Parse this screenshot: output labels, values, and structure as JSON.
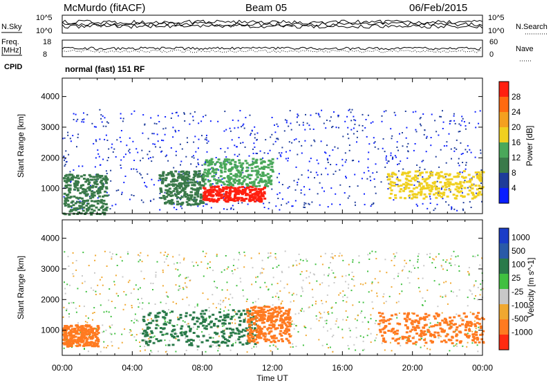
{
  "header": {
    "station": "McMurdo (fitACF)",
    "beam": "Beam 05",
    "date": "06/Feb/2015"
  },
  "top_panels": {
    "nsky_label": "N.Sky",
    "nsky_ticks": [
      "10^5",
      "10^0"
    ],
    "nsearch_label": "N.Search",
    "nsearch_ticks": [
      "10^5",
      "10^0"
    ],
    "freq_label": "Freq.",
    "freq_unit": "[MHz]",
    "freq_ticks": [
      "18",
      "8"
    ],
    "nave_label": "Nave",
    "nave_ticks": [
      "60",
      "0"
    ],
    "cpid_label": "CPID",
    "cpid_value": "normal (fast) 151 RF"
  },
  "colors": {
    "power_scale": [
      "#0a1eff",
      "#1e3c9a",
      "#3a7a4a",
      "#4aa85a",
      "#f0d020",
      "#f4a020",
      "#ff6a10",
      "#ff2010"
    ],
    "velocity_scale": [
      "#1a3cc8",
      "#2a5aa8",
      "#2a7a4a",
      "#40c040",
      "#c8c8c8",
      "#f0a830",
      "#ff7a20",
      "#ff2a10"
    ]
  },
  "chart_data": [
    {
      "type": "heatmap",
      "title": "",
      "xlabel": "Time UT",
      "ylabel": "Slant Range [km]",
      "x_ticks": [
        "00:00",
        "04:00",
        "08:00",
        "12:00",
        "16:00",
        "20:00",
        "00:00"
      ],
      "xlim": [
        0,
        24
      ],
      "y_ticks": [
        "1000",
        "2000",
        "3000",
        "4000"
      ],
      "ylim": [
        180,
        4600
      ],
      "colorbar": {
        "label": "Power [dB]",
        "ticks": [
          "4",
          "8",
          "12",
          "16",
          "20",
          "24",
          "28"
        ],
        "range": [
          0,
          30
        ]
      },
      "features": [
        {
          "t_start": 0.0,
          "t_end": 2.5,
          "range_start": 180,
          "range_end": 1500,
          "value": 10
        },
        {
          "t_start": 5.5,
          "t_end": 8.0,
          "range_start": 500,
          "range_end": 1600,
          "value": 8
        },
        {
          "t_start": 8.0,
          "t_end": 11.5,
          "range_start": 600,
          "range_end": 1100,
          "value": 28
        },
        {
          "t_start": 8.0,
          "t_end": 12.0,
          "range_start": 1100,
          "range_end": 2000,
          "value": 12
        },
        {
          "t_start": 18.5,
          "t_end": 24.0,
          "range_start": 700,
          "range_end": 1600,
          "value": 16
        }
      ]
    },
    {
      "type": "heatmap",
      "title": "",
      "xlabel": "Time UT",
      "ylabel": "Slant Range [km]",
      "x_ticks": [
        "00:00",
        "04:00",
        "08:00",
        "12:00",
        "16:00",
        "20:00",
        "00:00"
      ],
      "xlim": [
        0,
        24
      ],
      "y_ticks": [
        "1000",
        "2000",
        "3000",
        "4000"
      ],
      "ylim": [
        180,
        4600
      ],
      "colorbar": {
        "label": "Velocity [m s^-1]",
        "ticks": [
          "1000",
          "500",
          "100",
          "25",
          "-25",
          "-100",
          "-500",
          "-1000"
        ]
      },
      "features": [
        {
          "t_start": 0.0,
          "t_end": 2.0,
          "range_start": 500,
          "range_end": 1200,
          "value": -300
        },
        {
          "t_start": 4.5,
          "t_end": 11.0,
          "range_start": 500,
          "range_end": 1700,
          "value": 150
        },
        {
          "t_start": 10.5,
          "t_end": 13.0,
          "range_start": 600,
          "range_end": 1800,
          "value": -200
        },
        {
          "t_start": 18.0,
          "t_end": 24.0,
          "range_start": 600,
          "range_end": 1600,
          "value": -300
        }
      ]
    }
  ]
}
